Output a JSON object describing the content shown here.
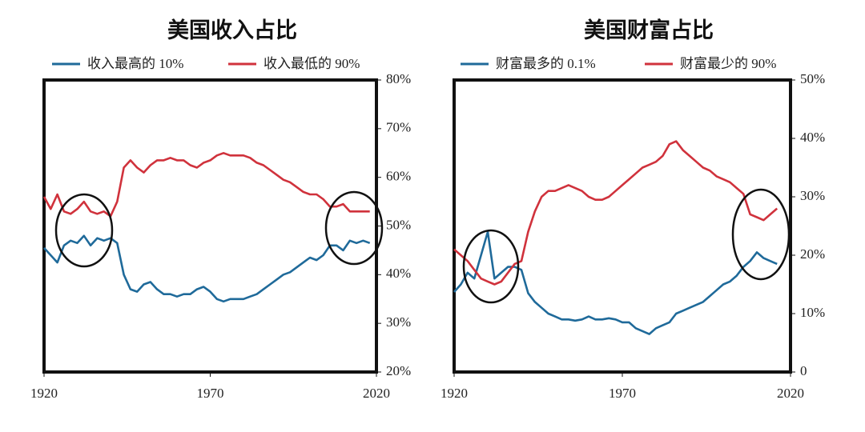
{
  "chart_data": [
    {
      "type": "line",
      "title": "美国收入占比",
      "x": [
        1920,
        1922,
        1924,
        1926,
        1928,
        1930,
        1932,
        1934,
        1936,
        1938,
        1940,
        1942,
        1944,
        1946,
        1948,
        1950,
        1952,
        1954,
        1956,
        1958,
        1960,
        1962,
        1964,
        1966,
        1968,
        1970,
        1972,
        1974,
        1976,
        1978,
        1980,
        1982,
        1984,
        1986,
        1988,
        1990,
        1992,
        1994,
        1996,
        1998,
        2000,
        2002,
        2004,
        2006,
        2008,
        2010,
        2012,
        2014,
        2016,
        2018
      ],
      "series": [
        {
          "name": "收入最高的 10%",
          "color": "#1f6a9a",
          "values": [
            45.5,
            44,
            42.5,
            46,
            47,
            46.5,
            48,
            46,
            47.5,
            47,
            47.5,
            46.5,
            40,
            37,
            36.5,
            38,
            38.5,
            37,
            36,
            36,
            35.5,
            36,
            36,
            37,
            37.5,
            36.5,
            35,
            34.5,
            35,
            35,
            35,
            35.5,
            36,
            37,
            38,
            39,
            40,
            40.5,
            41.5,
            42.5,
            43.5,
            43,
            44,
            46,
            46,
            45,
            47,
            46.5,
            47,
            46.5
          ]
        },
        {
          "name": "收入最低的 90%",
          "color": "#d0323c",
          "values": [
            56,
            53.5,
            56.5,
            53,
            52.5,
            53.5,
            55,
            53,
            52.5,
            53,
            52,
            55,
            62,
            63.5,
            62,
            61,
            62.5,
            63.5,
            63.5,
            64,
            63.5,
            63.5,
            62.5,
            62,
            63,
            63.5,
            64.5,
            65,
            64.5,
            64.5,
            64.5,
            64,
            63,
            62.5,
            61.5,
            60.5,
            59.5,
            59,
            58,
            57,
            56.5,
            56.5,
            55.5,
            54,
            54,
            54.5,
            53,
            53,
            53,
            53
          ]
        }
      ],
      "xlim": [
        1920,
        2020
      ],
      "xticks": [
        1920,
        1970,
        2020
      ],
      "ylim": [
        20,
        80
      ],
      "yticks": [
        {
          "value": 20,
          "label": "20%"
        },
        {
          "value": 30,
          "label": "30%"
        },
        {
          "value": 40,
          "label": "40%"
        },
        {
          "value": 50,
          "label": "50%"
        },
        {
          "value": 60,
          "label": "60%"
        },
        {
          "value": 70,
          "label": "70%"
        },
        {
          "value": 80,
          "label": "80%"
        }
      ]
    },
    {
      "type": "line",
      "title": "美国财富占比",
      "x": [
        1920,
        1922,
        1924,
        1926,
        1928,
        1930,
        1932,
        1934,
        1936,
        1938,
        1940,
        1942,
        1944,
        1946,
        1948,
        1950,
        1952,
        1954,
        1956,
        1958,
        1960,
        1962,
        1964,
        1966,
        1968,
        1970,
        1972,
        1974,
        1976,
        1978,
        1980,
        1982,
        1984,
        1986,
        1988,
        1990,
        1992,
        1994,
        1996,
        1998,
        2000,
        2002,
        2004,
        2006,
        2008,
        2010,
        2012,
        2014,
        2016
      ],
      "series": [
        {
          "name": "财富最多的 0.1%",
          "color": "#1f6a9a",
          "values": [
            13.7,
            15,
            17,
            16,
            20,
            24,
            16,
            17,
            18,
            18,
            17.5,
            13.5,
            12,
            11,
            10,
            9.5,
            9,
            9,
            8.8,
            9,
            9.5,
            9,
            9,
            9.2,
            9,
            8.5,
            8.5,
            7.5,
            7,
            6.5,
            7.5,
            8,
            8.5,
            10,
            10.5,
            11,
            11.5,
            12,
            13,
            14,
            15,
            15.5,
            16.5,
            18,
            19,
            20.5,
            19.5,
            19,
            18.5
          ]
        },
        {
          "name": "财富最少的 90%",
          "color": "#d0323c",
          "values": [
            21,
            20,
            19,
            17.5,
            16,
            15.5,
            15,
            15.5,
            17,
            18.5,
            19,
            24,
            27.5,
            30,
            31,
            31,
            31.5,
            32,
            31.5,
            31,
            30,
            29.5,
            29.5,
            30,
            31,
            32,
            33,
            34,
            35,
            35.5,
            36,
            37,
            39,
            39.5,
            38,
            37,
            36,
            35,
            34.5,
            33.5,
            33,
            32.5,
            31.5,
            30.5,
            27,
            26.5,
            26,
            27,
            28
          ]
        }
      ],
      "xlim": [
        1920,
        2020
      ],
      "xticks": [
        1920,
        1970,
        2020
      ],
      "ylim": [
        0,
        50
      ],
      "yticks": [
        0,
        {
          "value": 10,
          "label": "10%"
        },
        {
          "value": 20,
          "label": "20%"
        },
        {
          "value": 30,
          "label": "30%"
        },
        {
          "value": 40,
          "label": "40%"
        },
        {
          "value": 50,
          "label": "50%"
        }
      ]
    }
  ]
}
